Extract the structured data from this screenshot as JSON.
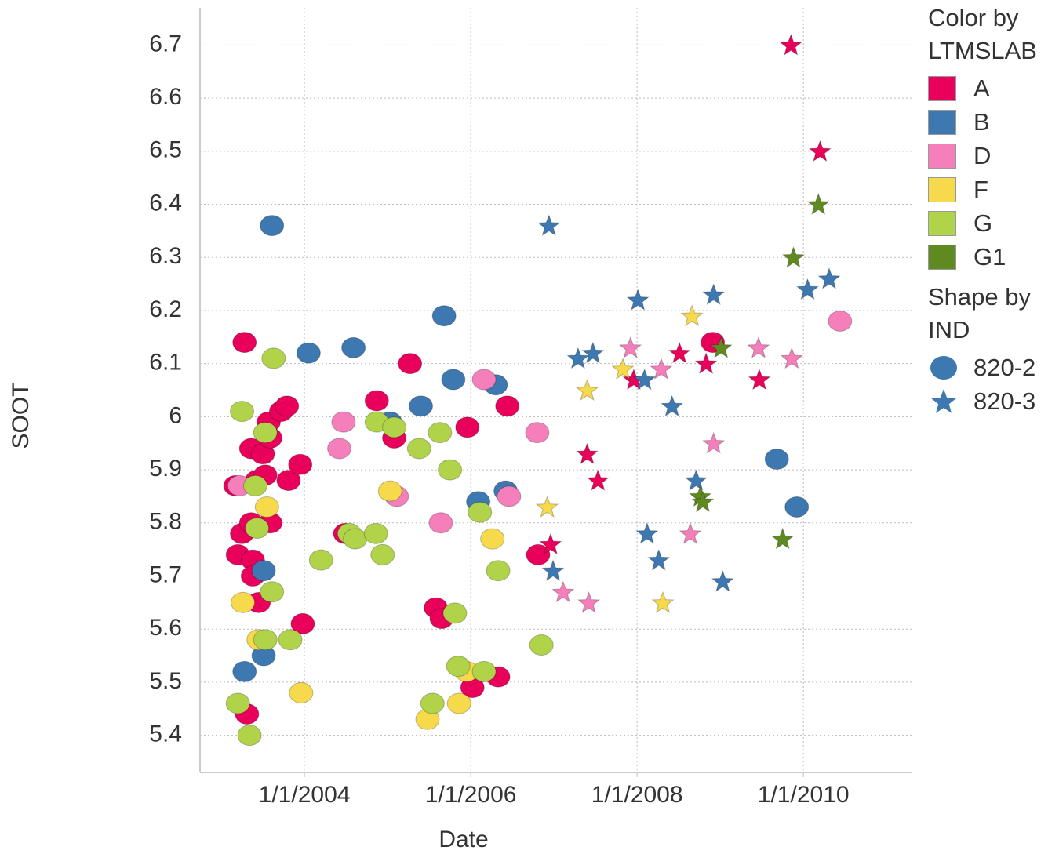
{
  "chart_data": {
    "type": "scatter",
    "x_label": "Date",
    "y_label": "SOOT",
    "xlim": [
      2002.745,
      2011.3
    ],
    "ylim": [
      5.33,
      6.77
    ],
    "xticks": [
      {
        "value": 2004,
        "label": "1/1/2004"
      },
      {
        "value": 2006,
        "label": "1/1/2006"
      },
      {
        "value": 2008,
        "label": "1/1/2008"
      },
      {
        "value": 2010,
        "label": "1/1/2010"
      }
    ],
    "yticks": [
      5.4,
      5.5,
      5.6,
      5.7,
      5.8,
      5.9,
      6,
      6.1,
      6.2,
      6.3,
      6.4,
      6.5,
      6.6,
      6.7
    ],
    "grid": true,
    "color_legend": {
      "title": "Color by LTMSLAB",
      "items": [
        {
          "name": "A",
          "color": "#e8005a"
        },
        {
          "name": "B",
          "color": "#3d78b0"
        },
        {
          "name": "D",
          "color": "#f57fba"
        },
        {
          "name": "F",
          "color": "#f7d94c"
        },
        {
          "name": "G",
          "color": "#b1d34a"
        },
        {
          "name": "G1",
          "color": "#5f8a1f"
        }
      ]
    },
    "shape_legend": {
      "title": "Shape by IND",
      "items": [
        {
          "name": "820-2",
          "shape": "circle"
        },
        {
          "name": "820-3",
          "shape": "star"
        }
      ]
    },
    "series": [
      {
        "color": "A",
        "shape": "820-2",
        "x": [
          2003.17,
          2003.28,
          2003.25,
          2003.2,
          2003.36,
          2003.38,
          2003.38,
          2003.45,
          2003.59,
          2003.36,
          2003.5,
          2003.43,
          2003.53,
          2003.57,
          2003.59,
          2003.72,
          2003.79,
          2003.81,
          2003.95,
          2003.98,
          2003.31,
          2004.49,
          2004.87,
          2005.08,
          2005.27,
          2005.58,
          2005.65,
          2005.96,
          2006.02,
          2006.33,
          2006.44,
          2006.81,
          2008.91
        ],
        "values": [
          5.87,
          6.14,
          5.78,
          5.74,
          5.8,
          5.73,
          5.7,
          5.65,
          5.8,
          5.94,
          5.93,
          5.88,
          5.89,
          5.99,
          5.96,
          6.01,
          6.02,
          5.88,
          5.91,
          5.61,
          5.44,
          5.78,
          6.03,
          5.96,
          6.1,
          5.64,
          5.62,
          5.98,
          5.49,
          5.51,
          6.02,
          5.74,
          6.14
        ]
      },
      {
        "color": "B",
        "shape": "820-2",
        "x": [
          2003.61,
          2004.05,
          2004.59,
          2003.28,
          2003.51,
          2003.51,
          2005.03,
          2005.4,
          2005.68,
          2005.79,
          2006.09,
          2006.3,
          2006.42,
          2009.68,
          2009.92
        ],
        "values": [
          6.36,
          6.12,
          6.13,
          5.52,
          5.55,
          5.71,
          5.99,
          6.02,
          6.19,
          6.07,
          5.84,
          6.06,
          5.86,
          5.92,
          5.83
        ]
      },
      {
        "color": "D",
        "shape": "820-2",
        "x": [
          2003.22,
          2004.47,
          2004.42,
          2005.11,
          2005.64,
          2006.16,
          2006.46,
          2006.8,
          2010.44
        ],
        "values": [
          5.87,
          5.99,
          5.94,
          5.85,
          5.8,
          6.07,
          5.85,
          5.97,
          6.18
        ]
      },
      {
        "color": "F",
        "shape": "820-2",
        "x": [
          2003.55,
          2003.26,
          2003.45,
          2003.96,
          2005.03,
          2005.48,
          2005.86,
          2005.95,
          2006.26
        ],
        "values": [
          5.83,
          5.65,
          5.58,
          5.48,
          5.86,
          5.43,
          5.46,
          5.52,
          5.77
        ]
      },
      {
        "color": "G",
        "shape": "820-2",
        "x": [
          2003.25,
          2003.63,
          2003.41,
          2003.53,
          2003.43,
          2003.61,
          2003.53,
          2003.83,
          2003.2,
          2003.34,
          2004.2,
          2004.54,
          2004.61,
          2004.86,
          2004.94,
          2004.87,
          2005.08,
          2005.38,
          2005.63,
          2005.75,
          2006.11,
          2006.33,
          2005.81,
          2005.85,
          2006.16,
          2005.54,
          2006.85
        ],
        "values": [
          6.01,
          6.11,
          5.87,
          5.97,
          5.79,
          5.67,
          5.58,
          5.58,
          5.46,
          5.4,
          5.73,
          5.78,
          5.77,
          5.78,
          5.74,
          5.99,
          5.98,
          5.94,
          5.97,
          5.9,
          5.82,
          5.71,
          5.63,
          5.53,
          5.52,
          5.46,
          5.57
        ]
      },
      {
        "color": "A",
        "shape": "820-3",
        "x": [
          2009.85,
          2010.2,
          2007.4,
          2007.53,
          2006.96,
          2007.96,
          2008.51,
          2008.83,
          2009.47
        ],
        "values": [
          6.7,
          6.5,
          5.93,
          5.88,
          5.76,
          6.07,
          6.12,
          6.1,
          6.07
        ]
      },
      {
        "color": "B",
        "shape": "820-3",
        "x": [
          2006.94,
          2007.29,
          2007.47,
          2008.01,
          2008.09,
          2008.42,
          2008.92,
          2008.71,
          2008.12,
          2008.26,
          2006.99,
          2009.03,
          2010.05,
          2010.31
        ],
        "values": [
          6.36,
          6.11,
          6.12,
          6.22,
          6.07,
          6.02,
          6.23,
          5.88,
          5.78,
          5.73,
          5.71,
          5.69,
          6.24,
          6.26
        ]
      },
      {
        "color": "D",
        "shape": "820-3",
        "x": [
          2007.92,
          2008.29,
          2008.92,
          2008.64,
          2007.11,
          2007.42,
          2009.46,
          2009.86
        ],
        "values": [
          6.13,
          6.09,
          5.95,
          5.78,
          5.67,
          5.65,
          6.13,
          6.11
        ]
      },
      {
        "color": "F",
        "shape": "820-3",
        "x": [
          2008.66,
          2007.83,
          2007.4,
          2006.92,
          2008.31
        ],
        "values": [
          6.19,
          6.09,
          6.05,
          5.83,
          5.65
        ]
      },
      {
        "color": "G1",
        "shape": "820-3",
        "x": [
          2010.18,
          2009.88,
          2009.01,
          2008.76,
          2008.79,
          2009.75
        ],
        "values": [
          6.4,
          6.3,
          6.13,
          5.85,
          5.84,
          5.77
        ]
      }
    ]
  }
}
